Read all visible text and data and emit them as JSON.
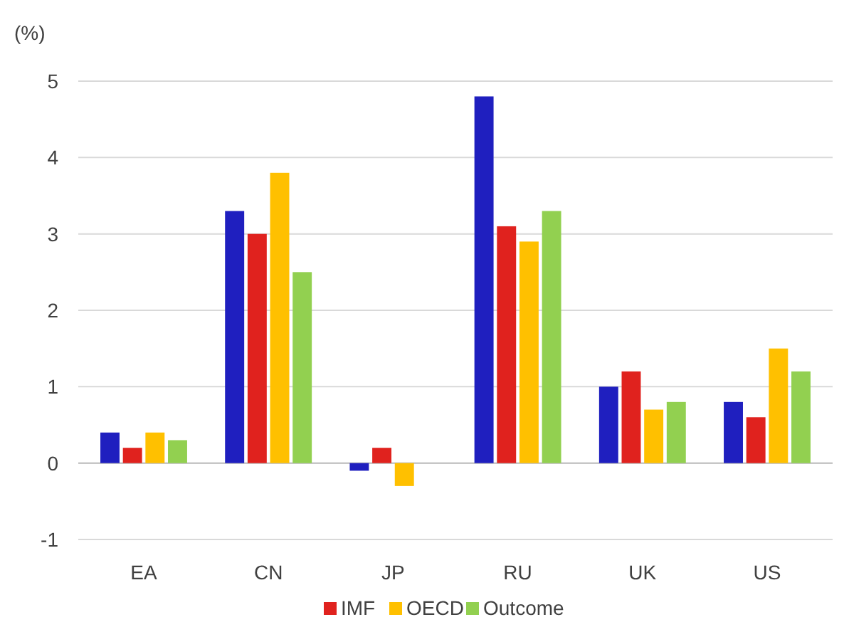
{
  "chart_data": {
    "type": "bar",
    "ylabel": "(%)",
    "categories": [
      "EA",
      "CN",
      "JP",
      "RU",
      "UK",
      "US"
    ],
    "series": [
      {
        "color": "#1f1fbf",
        "values": [
          0.4,
          3.3,
          -0.1,
          4.8,
          1.0,
          0.8
        ]
      },
      {
        "name": "IMF",
        "color": "#e0221e",
        "values": [
          0.2,
          3.0,
          0.2,
          3.1,
          1.2,
          0.6
        ]
      },
      {
        "name": "OECD",
        "color": "#ffc000",
        "values": [
          0.4,
          3.8,
          -0.3,
          2.9,
          0.7,
          1.5
        ]
      },
      {
        "name": "Outcome",
        "color": "#92d050",
        "values": [
          0.3,
          2.5,
          0,
          3.3,
          0.8,
          1.2
        ]
      }
    ],
    "ylim": [
      -1,
      5
    ],
    "yticks": [
      -1,
      0,
      1,
      2,
      3,
      4,
      5
    ],
    "grid": "y",
    "legend": "bottom"
  }
}
